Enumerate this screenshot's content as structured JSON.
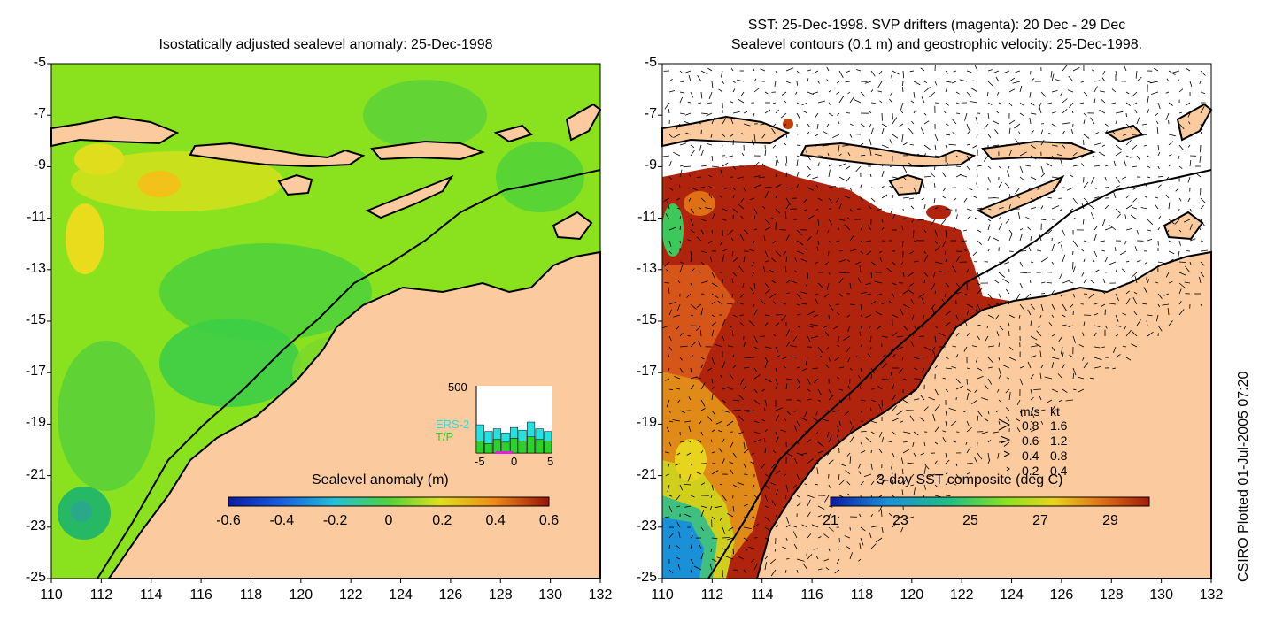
{
  "left_panel": {
    "title": "Isostatically adjusted sealevel anomaly: 25-Dec-1998",
    "colorbar": {
      "title": "Sealevel anomaly (m)",
      "ticks": [
        "-0.6",
        "-0.4",
        "-0.2",
        "0",
        "0.2",
        "0.4",
        "0.6"
      ],
      "range": [
        -0.6,
        0.6
      ]
    },
    "histogram": {
      "ymax_label": "500",
      "x_ticks": [
        "-5",
        "0",
        "5"
      ],
      "legend": [
        "ERS-2",
        "T/P"
      ],
      "legend_colors": [
        "#27e0e0",
        "#2ad22a"
      ],
      "ers2_counts": [
        210,
        160,
        180,
        150,
        190,
        170,
        230,
        180,
        160
      ],
      "tp_counts": [
        90,
        70,
        100,
        80,
        110,
        90,
        120,
        100,
        90
      ]
    }
  },
  "right_panel": {
    "title_line1": "SST: 25-Dec-1998. SVP drifters (magenta): 20 Dec - 29 Dec",
    "title_line2": "Sealevel contours (0.1 m) and geostrophic velocity: 25-Dec-1998.",
    "colorbar": {
      "title": "3-day SST composite (deg C)",
      "ticks": [
        "21",
        "23",
        "25",
        "27",
        "29"
      ],
      "range": [
        21,
        30
      ]
    },
    "velocity_key": {
      "header_ms": "m/s",
      "header_kt": "kt",
      "rows": [
        {
          "ms": "0.8",
          "kt": "1.6"
        },
        {
          "ms": "0.6",
          "kt": "1.2"
        },
        {
          "ms": "0.4",
          "kt": "0.8"
        },
        {
          "ms": "0.2",
          "kt": "0.4"
        }
      ]
    }
  },
  "axes": {
    "y_ticks": [
      "-5",
      "-7",
      "-9",
      "-11",
      "-13",
      "-15",
      "-17",
      "-19",
      "-21",
      "-23",
      "-25"
    ],
    "x_ticks": [
      "110",
      "112",
      "114",
      "116",
      "118",
      "120",
      "122",
      "124",
      "126",
      "128",
      "130",
      "132"
    ],
    "lon_range": [
      110,
      132
    ],
    "lat_range": [
      -25,
      -5
    ]
  },
  "side_label": "CSIRO Plotted 01-Jul-2005 07:20",
  "colors": {
    "land": "#fbcb9f",
    "sla_background": "#8ae21f",
    "sst_warm": "#a41a0a",
    "sst_orange": "#d65a12",
    "sst_cool": "#1a90d8"
  }
}
